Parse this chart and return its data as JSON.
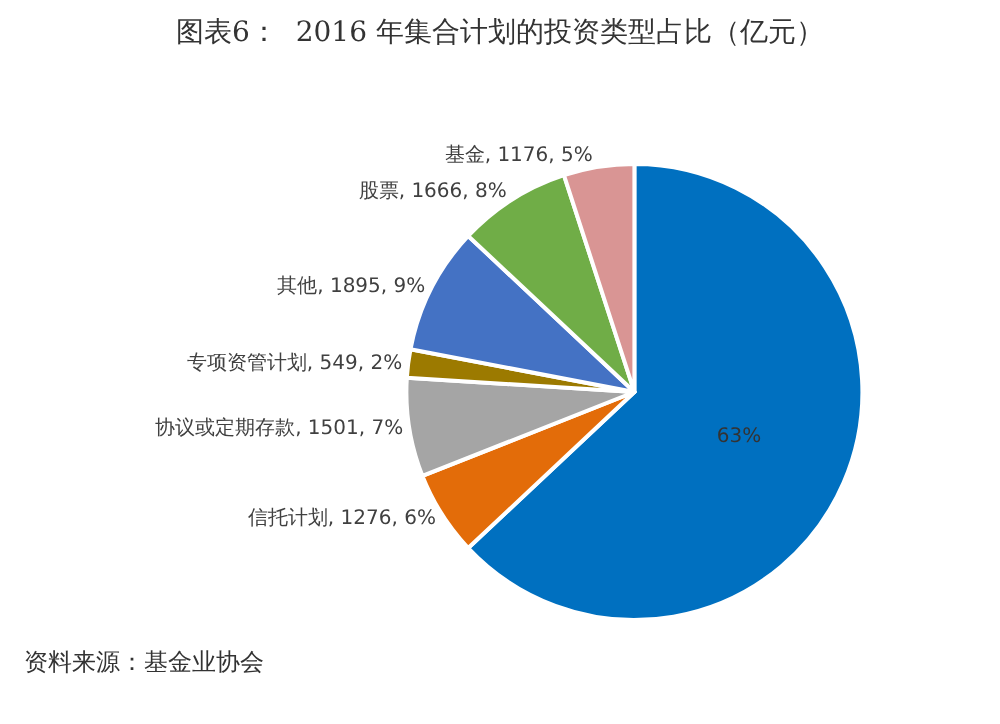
{
  "chart_data": {
    "type": "pie",
    "title": "图表6：  2016 年集合计划的投资类型占比（亿元）",
    "categories": [
      null,
      "信托计划",
      "协议或定期存款",
      "专项资管计划",
      "其他",
      "股票",
      "基金"
    ],
    "values": [
      63,
      6,
      7,
      2,
      9,
      8,
      5
    ],
    "value_labels": [
      "63%",
      "1276, 6%",
      "1501, 7%",
      "549, 2%",
      "1895, 9%",
      "1666, 8%",
      "1176, 5%"
    ],
    "colors": [
      "#0070c0",
      "#e36c09",
      "#a5a5a5",
      "#9c7a00",
      "#4472c4",
      "#70ad47",
      "#d99594"
    ],
    "legend": false,
    "annotations": [
      "资料来源：基金业协会"
    ]
  }
}
